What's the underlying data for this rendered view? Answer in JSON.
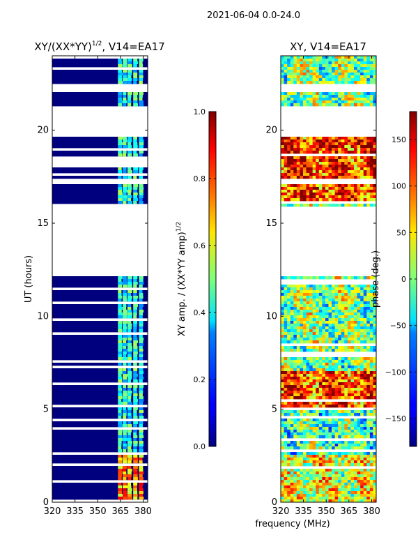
{
  "chart_data": {
    "type": "heatmap",
    "suptitle": "2021-06-04 0.0-24.0",
    "xlabel": "frequency (MHz)",
    "panels": [
      {
        "title": "XY/(XX*YY)1/2, V14=EA17",
        "title_main": "XY/(XX*YY)",
        "title_sup": "1/2",
        "title_tail": ", V14=EA17",
        "ylabel": "UT (hours)",
        "xlim": [
          320,
          383
        ],
        "ylim": [
          0,
          24
        ],
        "xticks": [
          320,
          335,
          350,
          365,
          380
        ],
        "yticks": [
          0,
          5,
          10,
          15,
          20
        ],
        "colorbar": {
          "label": "XY amp. / (XX*YY amp)1/2",
          "label_main": "XY amp. / (XX*YY amp)",
          "label_sup": "1/2",
          "range": [
            0.0,
            1.0
          ],
          "ticks": [
            "0.0",
            "0.2",
            "0.4",
            "0.6",
            "0.8",
            "1.0"
          ],
          "tick_values": [
            0.0,
            0.2,
            0.4,
            0.6,
            0.8,
            1.0
          ]
        }
      },
      {
        "title": "XY, V14=EA17",
        "ylabel": "",
        "xlim": [
          320,
          383
        ],
        "ylim": [
          0,
          24
        ],
        "xticks": [
          320,
          335,
          350,
          365,
          380
        ],
        "yticks": [
          0,
          5,
          10,
          15,
          20
        ],
        "colorbar": {
          "label": "phase (deg.)",
          "range": [
            -180,
            180
          ],
          "ticks": [
            "−150",
            "−100",
            "−50",
            "0",
            "50",
            "100",
            "150"
          ],
          "tick_values": [
            -150,
            -100,
            -50,
            0,
            50,
            100,
            150
          ]
        }
      }
    ],
    "data_gaps_hours": [
      [
        12.1,
        15.95
      ],
      [
        19.6,
        21.3
      ],
      [
        22.1,
        22.5
      ]
    ],
    "colormap": "jet"
  }
}
